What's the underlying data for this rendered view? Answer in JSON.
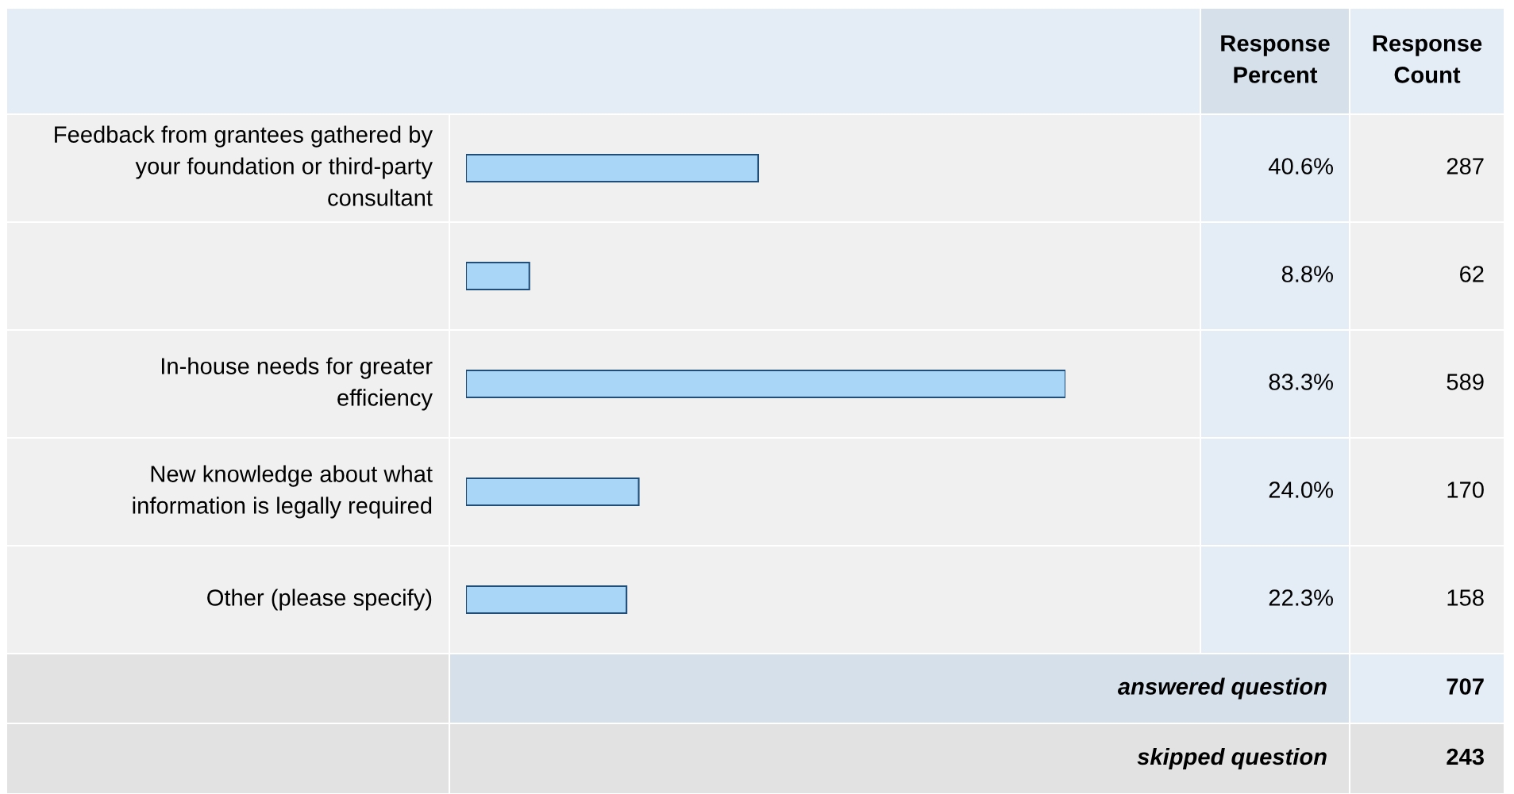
{
  "chart_data": {
    "type": "bar",
    "orientation": "horizontal",
    "categories": [
      "Feedback from grantees gathered by your foundation or third-party consultant",
      null,
      "In-house needs for greater efficiency",
      "New knowledge about what information is legally required",
      "Other (please specify)"
    ],
    "values": [
      40.6,
      8.8,
      83.3,
      24.0,
      22.3
    ],
    "value_labels": [
      "40.6%",
      "8.8%",
      "83.3%",
      "24.0%",
      "22.3%"
    ],
    "color": "#a9d5f7",
    "legend": false,
    "annotations": [
      "Response Percent",
      "Response Count",
      "287",
      "62",
      "589",
      "170",
      "158",
      "answered question",
      "707",
      "skipped question",
      "243"
    ]
  }
}
